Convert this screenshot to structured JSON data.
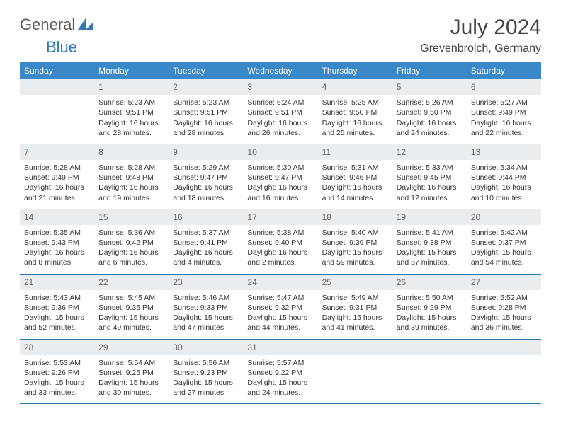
{
  "logo": {
    "text_a": "General",
    "text_b": "Blue"
  },
  "title": "July 2024",
  "location": "Grevenbroich, Germany",
  "colors": {
    "header_bg": "#3b88c9",
    "rule": "#2e78ba",
    "alt_row_bg": "#e9edef",
    "text": "#333333",
    "muted": "#666666"
  },
  "day_headers": [
    "Sunday",
    "Monday",
    "Tuesday",
    "Wednesday",
    "Thursday",
    "Friday",
    "Saturday"
  ],
  "weeks": [
    [
      null,
      {
        "n": "1",
        "sr": "Sunrise: 5:23 AM",
        "ss": "Sunset: 9:51 PM",
        "dl1": "Daylight: 16 hours",
        "dl2": "and 28 minutes."
      },
      {
        "n": "2",
        "sr": "Sunrise: 5:23 AM",
        "ss": "Sunset: 9:51 PM",
        "dl1": "Daylight: 16 hours",
        "dl2": "and 28 minutes."
      },
      {
        "n": "3",
        "sr": "Sunrise: 5:24 AM",
        "ss": "Sunset: 9:51 PM",
        "dl1": "Daylight: 16 hours",
        "dl2": "and 26 minutes."
      },
      {
        "n": "4",
        "sr": "Sunrise: 5:25 AM",
        "ss": "Sunset: 9:50 PM",
        "dl1": "Daylight: 16 hours",
        "dl2": "and 25 minutes."
      },
      {
        "n": "5",
        "sr": "Sunrise: 5:26 AM",
        "ss": "Sunset: 9:50 PM",
        "dl1": "Daylight: 16 hours",
        "dl2": "and 24 minutes."
      },
      {
        "n": "6",
        "sr": "Sunrise: 5:27 AM",
        "ss": "Sunset: 9:49 PM",
        "dl1": "Daylight: 16 hours",
        "dl2": "and 22 minutes."
      }
    ],
    [
      {
        "n": "7",
        "sr": "Sunrise: 5:28 AM",
        "ss": "Sunset: 9:49 PM",
        "dl1": "Daylight: 16 hours",
        "dl2": "and 21 minutes."
      },
      {
        "n": "8",
        "sr": "Sunrise: 5:28 AM",
        "ss": "Sunset: 9:48 PM",
        "dl1": "Daylight: 16 hours",
        "dl2": "and 19 minutes."
      },
      {
        "n": "9",
        "sr": "Sunrise: 5:29 AM",
        "ss": "Sunset: 9:47 PM",
        "dl1": "Daylight: 16 hours",
        "dl2": "and 18 minutes."
      },
      {
        "n": "10",
        "sr": "Sunrise: 5:30 AM",
        "ss": "Sunset: 9:47 PM",
        "dl1": "Daylight: 16 hours",
        "dl2": "and 16 minutes."
      },
      {
        "n": "11",
        "sr": "Sunrise: 5:31 AM",
        "ss": "Sunset: 9:46 PM",
        "dl1": "Daylight: 16 hours",
        "dl2": "and 14 minutes."
      },
      {
        "n": "12",
        "sr": "Sunrise: 5:33 AM",
        "ss": "Sunset: 9:45 PM",
        "dl1": "Daylight: 16 hours",
        "dl2": "and 12 minutes."
      },
      {
        "n": "13",
        "sr": "Sunrise: 5:34 AM",
        "ss": "Sunset: 9:44 PM",
        "dl1": "Daylight: 16 hours",
        "dl2": "and 10 minutes."
      }
    ],
    [
      {
        "n": "14",
        "sr": "Sunrise: 5:35 AM",
        "ss": "Sunset: 9:43 PM",
        "dl1": "Daylight: 16 hours",
        "dl2": "and 8 minutes."
      },
      {
        "n": "15",
        "sr": "Sunrise: 5:36 AM",
        "ss": "Sunset: 9:42 PM",
        "dl1": "Daylight: 16 hours",
        "dl2": "and 6 minutes."
      },
      {
        "n": "16",
        "sr": "Sunrise: 5:37 AM",
        "ss": "Sunset: 9:41 PM",
        "dl1": "Daylight: 16 hours",
        "dl2": "and 4 minutes."
      },
      {
        "n": "17",
        "sr": "Sunrise: 5:38 AM",
        "ss": "Sunset: 9:40 PM",
        "dl1": "Daylight: 16 hours",
        "dl2": "and 2 minutes."
      },
      {
        "n": "18",
        "sr": "Sunrise: 5:40 AM",
        "ss": "Sunset: 9:39 PM",
        "dl1": "Daylight: 15 hours",
        "dl2": "and 59 minutes."
      },
      {
        "n": "19",
        "sr": "Sunrise: 5:41 AM",
        "ss": "Sunset: 9:38 PM",
        "dl1": "Daylight: 15 hours",
        "dl2": "and 57 minutes."
      },
      {
        "n": "20",
        "sr": "Sunrise: 5:42 AM",
        "ss": "Sunset: 9:37 PM",
        "dl1": "Daylight: 15 hours",
        "dl2": "and 54 minutes."
      }
    ],
    [
      {
        "n": "21",
        "sr": "Sunrise: 5:43 AM",
        "ss": "Sunset: 9:36 PM",
        "dl1": "Daylight: 15 hours",
        "dl2": "and 52 minutes."
      },
      {
        "n": "22",
        "sr": "Sunrise: 5:45 AM",
        "ss": "Sunset: 9:35 PM",
        "dl1": "Daylight: 15 hours",
        "dl2": "and 49 minutes."
      },
      {
        "n": "23",
        "sr": "Sunrise: 5:46 AM",
        "ss": "Sunset: 9:33 PM",
        "dl1": "Daylight: 15 hours",
        "dl2": "and 47 minutes."
      },
      {
        "n": "24",
        "sr": "Sunrise: 5:47 AM",
        "ss": "Sunset: 9:32 PM",
        "dl1": "Daylight: 15 hours",
        "dl2": "and 44 minutes."
      },
      {
        "n": "25",
        "sr": "Sunrise: 5:49 AM",
        "ss": "Sunset: 9:31 PM",
        "dl1": "Daylight: 15 hours",
        "dl2": "and 41 minutes."
      },
      {
        "n": "26",
        "sr": "Sunrise: 5:50 AM",
        "ss": "Sunset: 9:29 PM",
        "dl1": "Daylight: 15 hours",
        "dl2": "and 39 minutes."
      },
      {
        "n": "27",
        "sr": "Sunrise: 5:52 AM",
        "ss": "Sunset: 9:28 PM",
        "dl1": "Daylight: 15 hours",
        "dl2": "and 36 minutes."
      }
    ],
    [
      {
        "n": "28",
        "sr": "Sunrise: 5:53 AM",
        "ss": "Sunset: 9:26 PM",
        "dl1": "Daylight: 15 hours",
        "dl2": "and 33 minutes."
      },
      {
        "n": "29",
        "sr": "Sunrise: 5:54 AM",
        "ss": "Sunset: 9:25 PM",
        "dl1": "Daylight: 15 hours",
        "dl2": "and 30 minutes."
      },
      {
        "n": "30",
        "sr": "Sunrise: 5:56 AM",
        "ss": "Sunset: 9:23 PM",
        "dl1": "Daylight: 15 hours",
        "dl2": "and 27 minutes."
      },
      {
        "n": "31",
        "sr": "Sunrise: 5:57 AM",
        "ss": "Sunset: 9:22 PM",
        "dl1": "Daylight: 15 hours",
        "dl2": "and 24 minutes."
      },
      null,
      null,
      null
    ]
  ]
}
